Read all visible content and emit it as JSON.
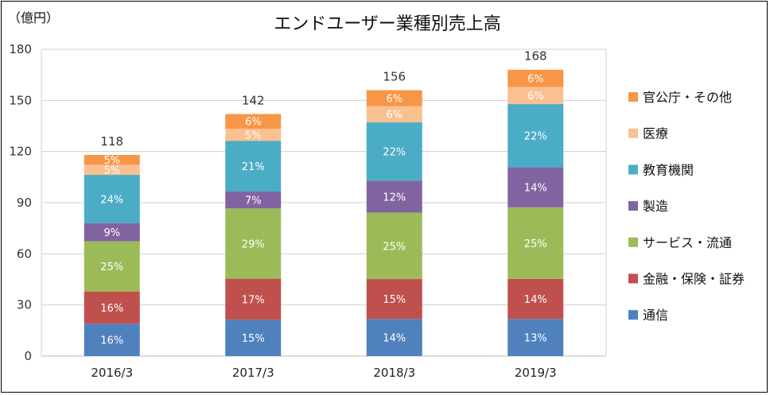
{
  "chart_data": {
    "type": "bar",
    "stacked": true,
    "title": "エンドユーザー業種別売上高",
    "unit_label": "（億円）",
    "categories": [
      "2016/3",
      "2017/3",
      "2018/3",
      "2019/3"
    ],
    "totals": [
      "118",
      "142",
      "156",
      "168"
    ],
    "ylim": [
      0,
      180
    ],
    "yticks": [
      "0",
      "30",
      "60",
      "90",
      "120",
      "150",
      "180"
    ],
    "grid": true,
    "legend_position": "right",
    "series": [
      {
        "name": "通信",
        "color": "#4f81bd",
        "values": [
          19,
          21.3,
          21.8,
          21.8
        ],
        "labels": [
          "16%",
          "15%",
          "14%",
          "13%"
        ]
      },
      {
        "name": "金融・保険・証券",
        "color": "#c0504d",
        "values": [
          18.9,
          24.1,
          23.4,
          23.5
        ],
        "labels": [
          "16%",
          "17%",
          "15%",
          "14%"
        ]
      },
      {
        "name": "サービス・流通",
        "color": "#9bbb59",
        "values": [
          29.5,
          41.2,
          39,
          42
        ],
        "labels": [
          "25%",
          "29%",
          "25%",
          "25%"
        ]
      },
      {
        "name": "製造",
        "color": "#8064a2",
        "values": [
          10.6,
          9.9,
          18.7,
          23.5
        ],
        "labels": [
          "9%",
          "7%",
          "12%",
          "14%"
        ]
      },
      {
        "name": "教育機関",
        "color": "#4bacc6",
        "values": [
          28.3,
          29.8,
          34.3,
          37
        ],
        "labels": [
          "24%",
          "21%",
          "22%",
          "22%"
        ]
      },
      {
        "name": "医療",
        "color": "#fac090",
        "values": [
          5.9,
          7.1,
          9.4,
          10.1
        ],
        "labels": [
          "5%",
          "5%",
          "6%",
          "6%"
        ]
      },
      {
        "name": "官公庁・その他",
        "color": "#f79646",
        "values": [
          5.8,
          8.6,
          9.4,
          10.1
        ],
        "labels": [
          "5%",
          "6%",
          "6%",
          "6%"
        ]
      }
    ]
  }
}
